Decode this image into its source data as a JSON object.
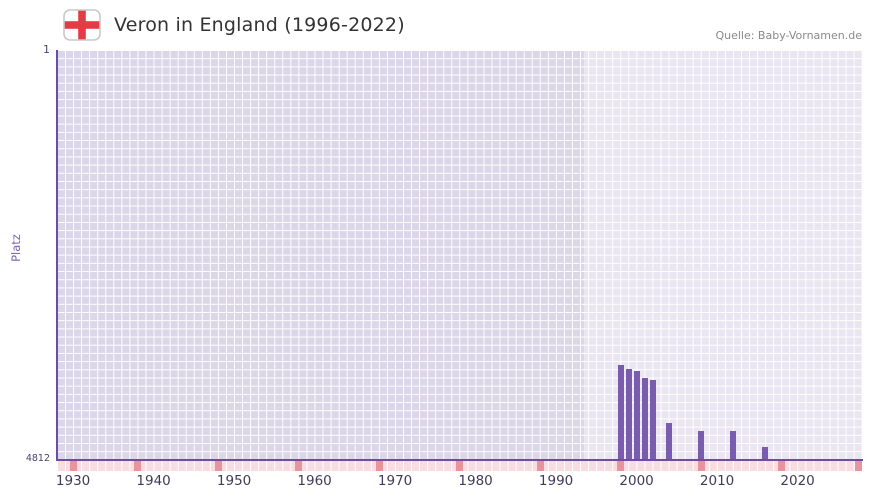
{
  "header": {
    "title": "Veron in England (1996-2022)",
    "source": "Quelle: Baby-Vornamen.de",
    "flag_icon": "england-flag-icon"
  },
  "chart_data": {
    "type": "bar",
    "title": "Veron in England (1996-2022)",
    "xlabel": "",
    "ylabel": "Platz",
    "grid": true,
    "legend": null,
    "y_axis": {
      "min": 1,
      "max": 4812,
      "inverted": true,
      "top_tick_label": "1",
      "bottom_tick_label": "4812"
    },
    "x_range": [
      1928,
      2028
    ],
    "x_ticks": [
      1930,
      1940,
      1950,
      1960,
      1970,
      1980,
      1990,
      2000,
      2010,
      2020
    ],
    "highlight_range": [
      1993.5,
      2028
    ],
    "decade_marks": [
      1930,
      1938,
      1948,
      1958,
      1968,
      1978,
      1988,
      1998,
      2008,
      2018,
      2028
    ],
    "series": [
      {
        "name": "Platz",
        "points": [
          {
            "year": 1998,
            "rank": 3700
          },
          {
            "year": 1999,
            "rank": 3740
          },
          {
            "year": 2000,
            "rank": 3770
          },
          {
            "year": 2001,
            "rank": 3845
          },
          {
            "year": 2002,
            "rank": 3870
          },
          {
            "year": 2004,
            "rank": 4380
          },
          {
            "year": 2008,
            "rank": 4475
          },
          {
            "year": 2012,
            "rank": 4475
          },
          {
            "year": 2016,
            "rank": 4660
          }
        ]
      }
    ],
    "colors": {
      "bar": "#7a5caf",
      "axis": "#6a4fa0",
      "grid_cell": "#dcd6e9",
      "grid_line": "#ffffff",
      "highlight": "rgba(255,255,255,0.38)",
      "strip_cell": "#f7dde1",
      "strip_mark": "#e9949c",
      "tick_label": "#3f3c58",
      "ylabel_color": "#7a5fb0",
      "title_color": "#333333",
      "source_color": "#8a8a8a"
    }
  }
}
